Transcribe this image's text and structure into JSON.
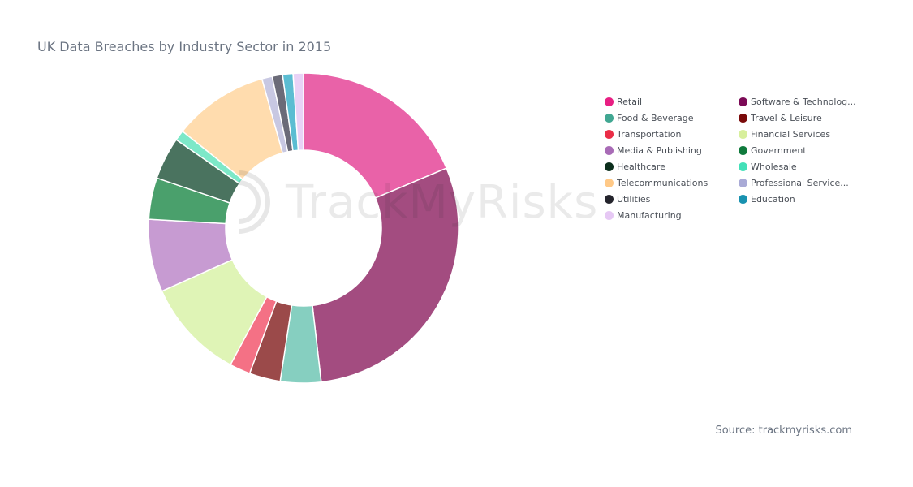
{
  "watermark": {
    "text": "TrackMyRisks"
  },
  "source": "Source: trackmyrisks.com",
  "chart_data": {
    "type": "pie",
    "donut": true,
    "title": "UK Data Breaches by Industry Sector in 2015",
    "legend_position": "right",
    "slices": [
      {
        "label": "Retail",
        "value": 19.0,
        "color": "#e962a8"
      },
      {
        "label": "Software & Technolog...",
        "value": 30.0,
        "color": "#a34c80"
      },
      {
        "label": "Food & Beverage",
        "value": 4.3,
        "color": "#86cfc0"
      },
      {
        "label": "Travel & Leisure",
        "value": 3.3,
        "color": "#9b4a4a"
      },
      {
        "label": "Transportation",
        "value": 2.2,
        "color": "#f47185"
      },
      {
        "label": "Financial Services",
        "value": 10.7,
        "color": "#dff4b6"
      },
      {
        "label": "Media & Publishing",
        "value": 7.7,
        "color": "#c79bd2"
      },
      {
        "label": "Government",
        "value": 4.4,
        "color": "#4aa06c"
      },
      {
        "label": "Healthcare",
        "value": 4.5,
        "color": "#4a735f"
      },
      {
        "label": "Wholesale",
        "value": 1.1,
        "color": "#7de8c8"
      },
      {
        "label": "Telecommunications",
        "value": 10.1,
        "color": "#ffdcae"
      },
      {
        "label": "Professional Service...",
        "value": 1.1,
        "color": "#c8c8e2"
      },
      {
        "label": "Utilities",
        "value": 1.1,
        "color": "#6b6b78"
      },
      {
        "label": "Education",
        "value": 1.1,
        "color": "#5bbdd2"
      },
      {
        "label": "Manufacturing",
        "value": 1.1,
        "color": "#e8d2f6"
      }
    ],
    "legend_colors": {
      "Retail": "#e81f83",
      "Software & Technolog...": "#7b0a56",
      "Food & Beverage": "#41a792",
      "Travel & Leisure": "#7a0a0a",
      "Transportation": "#ea2d47",
      "Financial Services": "#d7ef9c",
      "Media & Publishing": "#a86bb6",
      "Government": "#0f7a3c",
      "Healthcare": "#0b2e1c",
      "Wholesale": "#43e0b8",
      "Telecommunications": "#ffc987",
      "Professional Service...": "#a9aad6",
      "Utilities": "#24242c",
      "Education": "#1892b0",
      "Manufacturing": "#e6c8f4"
    }
  }
}
